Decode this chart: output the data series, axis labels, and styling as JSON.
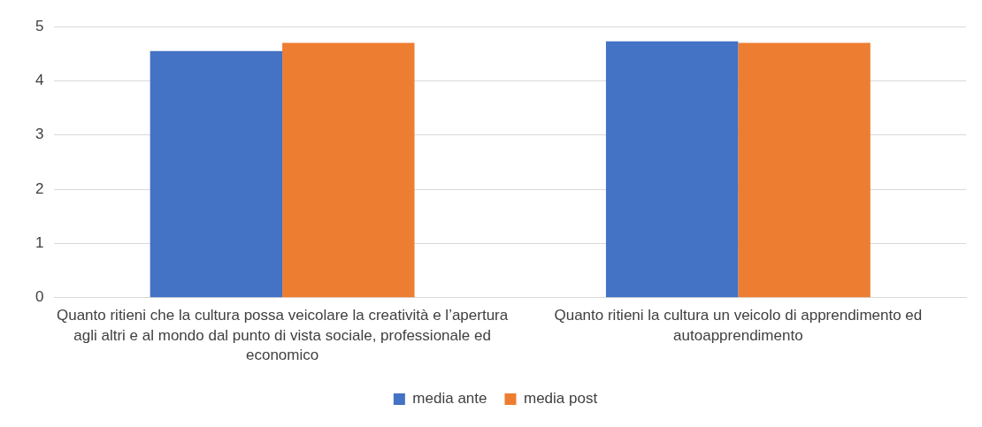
{
  "chart_data": {
    "type": "bar",
    "categories": [
      "Quanto ritieni che la cultura possa veicolare la creatività e l’apertura agli altri e al mondo dal punto di vista sociale, professionale ed economico",
      "Quanto ritieni la cultura un veicolo di apprendimento ed autoapprendimento"
    ],
    "series": [
      {
        "name": "media ante",
        "color": "#4472c4",
        "values": [
          4.55,
          4.73
        ]
      },
      {
        "name": "media post",
        "color": "#ed7d31",
        "values": [
          4.7,
          4.7
        ]
      }
    ],
    "ylim": [
      0,
      5
    ],
    "yticks": [
      0,
      1,
      2,
      3,
      4,
      5
    ],
    "grid": "y",
    "legend": "bottom"
  }
}
